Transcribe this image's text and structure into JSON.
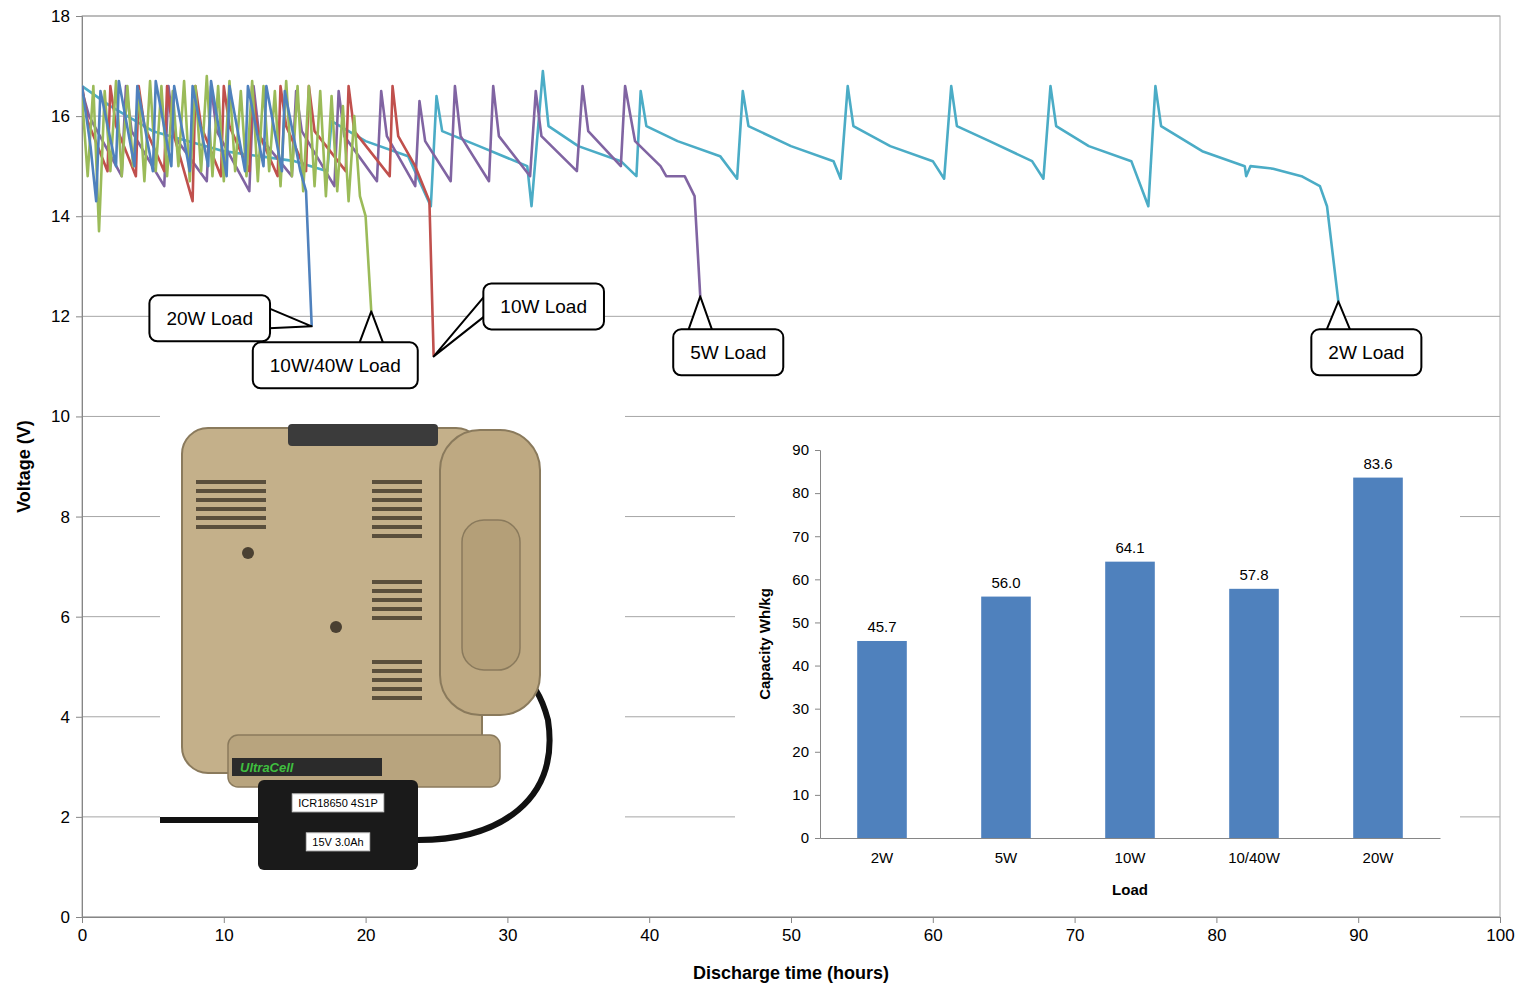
{
  "chart_data": [
    {
      "type": "line",
      "xlabel": "Discharge time (hours)",
      "ylabel": "Voltage (V)",
      "xlim": [
        0,
        100
      ],
      "ylim": [
        0,
        18
      ],
      "xticks": [
        0,
        10,
        20,
        30,
        40,
        50,
        60,
        70,
        80,
        90,
        100
      ],
      "yticks": [
        0,
        2,
        4,
        6,
        8,
        10,
        12,
        14,
        16,
        18
      ],
      "grid": true,
      "series": [
        {
          "name": "2W Load",
          "color": "#4bacc6",
          "x": [
            0,
            2,
            5,
            10,
            15,
            17.3,
            17.6,
            20,
            23,
            24.6,
            25.0,
            25.4,
            28,
            31.4,
            31.7,
            32.5,
            32.9,
            35,
            38,
            39.1,
            39.4,
            39.8,
            42,
            45,
            46.2,
            46.6,
            47.0,
            50,
            53,
            53.5,
            54.0,
            54.4,
            57,
            60,
            60.8,
            61.3,
            61.7,
            64,
            67,
            67.8,
            68.3,
            68.7,
            71,
            74,
            75.2,
            75.7,
            76.1,
            79,
            82,
            82.1,
            82.4,
            84,
            86,
            87.3,
            87.8,
            88.6
          ],
          "values": [
            16.6,
            16.2,
            15.7,
            15.3,
            15.1,
            14.9,
            15.9,
            15.5,
            15.2,
            14.2,
            16.4,
            15.7,
            15.4,
            15.0,
            14.2,
            16.9,
            15.8,
            15.4,
            15.1,
            14.8,
            16.5,
            15.8,
            15.5,
            15.2,
            14.75,
            16.5,
            15.8,
            15.4,
            15.1,
            14.75,
            16.6,
            15.8,
            15.4,
            15.1,
            14.75,
            16.6,
            15.8,
            15.5,
            15.1,
            14.75,
            16.6,
            15.8,
            15.4,
            15.1,
            14.2,
            16.6,
            15.8,
            15.3,
            15.0,
            14.8,
            15.0,
            14.95,
            14.8,
            14.6,
            14.2,
            12.3
          ]
        },
        {
          "name": "5W Load",
          "color": "#8064a2",
          "x": [
            0,
            0.5,
            2.8,
            3.1,
            3.5,
            5.8,
            6.1,
            6.5,
            8.8,
            9.1,
            9.5,
            11.8,
            12.1,
            12.5,
            14.8,
            15.1,
            15.5,
            17.8,
            18.1,
            18.5,
            20.8,
            21.1,
            21.5,
            23.5,
            23.8,
            24.2,
            26.0,
            26.3,
            26.7,
            28.7,
            29.0,
            29.4,
            31.6,
            32.0,
            32.4,
            34.9,
            35.3,
            35.7,
            38.0,
            38.3,
            39.0,
            40.8,
            41.2,
            42.5,
            43.2,
            43.6
          ],
          "values": [
            16.5,
            16.0,
            14.8,
            16.6,
            15.7,
            14.6,
            16.6,
            15.6,
            14.7,
            16.6,
            15.7,
            14.5,
            16.6,
            15.6,
            14.8,
            16.5,
            15.7,
            14.6,
            16.5,
            15.6,
            14.7,
            16.5,
            15.6,
            14.6,
            16.3,
            15.5,
            14.7,
            16.6,
            15.6,
            14.7,
            16.6,
            15.6,
            14.8,
            16.5,
            15.6,
            14.9,
            16.6,
            15.7,
            15.0,
            16.6,
            15.5,
            15.0,
            14.8,
            14.8,
            14.4,
            12.4
          ]
        },
        {
          "name": "10W Load",
          "color": "#c0504d",
          "x": [
            0,
            0.4,
            1.8,
            2.0,
            2.4,
            3.8,
            4.0,
            4.4,
            5.8,
            6.0,
            6.4,
            7.8,
            8.0,
            8.4,
            9.8,
            10.0,
            10.4,
            11.8,
            12.0,
            12.4,
            13.8,
            14.0,
            14.4,
            15.8,
            16.0,
            16.4,
            18.6,
            18.8,
            19.2,
            21.7,
            21.9,
            22.3,
            23.5,
            24.5,
            24.8
          ],
          "values": [
            16.6,
            15.9,
            14.9,
            16.6,
            15.8,
            14.8,
            16.6,
            15.8,
            14.9,
            16.6,
            15.7,
            14.3,
            16.6,
            15.8,
            14.8,
            16.6,
            15.8,
            14.9,
            16.6,
            15.7,
            14.8,
            16.6,
            15.8,
            14.9,
            16.6,
            15.7,
            14.9,
            16.6,
            15.7,
            14.8,
            16.6,
            15.6,
            15.0,
            14.3,
            11.2
          ]
        },
        {
          "name": "10W/40W Load",
          "color": "#9bbb59",
          "x": [
            0,
            0.4,
            0.8,
            1.2,
            1.6,
            2,
            2.4,
            2.8,
            3.2,
            3.6,
            4,
            4.4,
            4.8,
            5.2,
            5.6,
            6,
            6.4,
            6.8,
            7.2,
            7.6,
            8,
            8.4,
            8.8,
            9.2,
            9.6,
            10,
            10.4,
            10.8,
            11.2,
            11.6,
            12,
            12.4,
            12.8,
            13.2,
            13.6,
            14,
            14.4,
            14.8,
            15.2,
            15.6,
            16,
            16.4,
            16.8,
            17.2,
            17.6,
            18,
            18.4,
            18.8,
            19.2,
            19.6,
            20,
            20.4
          ],
          "values": [
            16.4,
            14.8,
            16.6,
            13.7,
            16.5,
            14.9,
            16.7,
            14.8,
            16.6,
            15.0,
            16.5,
            14.7,
            16.7,
            14.9,
            16.6,
            14.8,
            16.5,
            15.0,
            16.7,
            14.7,
            16.6,
            14.9,
            16.8,
            14.8,
            16.6,
            14.7,
            16.7,
            14.9,
            16.5,
            14.8,
            16.7,
            14.7,
            16.6,
            14.9,
            16.5,
            14.6,
            16.7,
            14.8,
            16.6,
            14.5,
            16.6,
            14.6,
            16.5,
            14.4,
            16.4,
            14.5,
            16.2,
            14.3,
            16.0,
            14.4,
            14.0,
            12.1
          ]
        },
        {
          "name": "20W Load",
          "color": "#4f81bd",
          "x": [
            0,
            0.6,
            1.0,
            1.3,
            2.4,
            2.6,
            3.7,
            3.9,
            5.0,
            5.2,
            6.3,
            6.5,
            7.6,
            7.8,
            8.9,
            9.1,
            10.2,
            10.4,
            11.5,
            11.7,
            12.8,
            13.0,
            14.1,
            14.3,
            15.4,
            15.8,
            16.2
          ],
          "values": [
            16.6,
            15.4,
            14.3,
            16.5,
            15.0,
            16.7,
            15.0,
            16.6,
            14.9,
            16.7,
            15.0,
            16.6,
            14.9,
            16.6,
            15.0,
            16.7,
            14.8,
            16.6,
            14.9,
            16.6,
            15.0,
            16.6,
            14.9,
            16.5,
            14.9,
            14.5,
            11.8
          ]
        }
      ]
    },
    {
      "type": "bar",
      "xlabel": "Load",
      "ylabel": "Capacity Wh/kg",
      "categories": [
        "2W",
        "5W",
        "10W",
        "10/40W",
        "20W"
      ],
      "values": [
        45.7,
        56.0,
        64.1,
        57.8,
        83.6
      ],
      "value_labels": [
        "45.7",
        "56.0",
        "64.1",
        "57.8",
        "83.6"
      ],
      "color": "#4f81bd",
      "ylim": [
        0,
        90
      ],
      "yticks": [
        0,
        10,
        20,
        30,
        40,
        50,
        60,
        70,
        80,
        90
      ],
      "data_labels": true
    }
  ],
  "photo": {
    "labels": [
      "UltraCell",
      "ICR18650 4S1P",
      "15V 3.0Ah"
    ]
  }
}
